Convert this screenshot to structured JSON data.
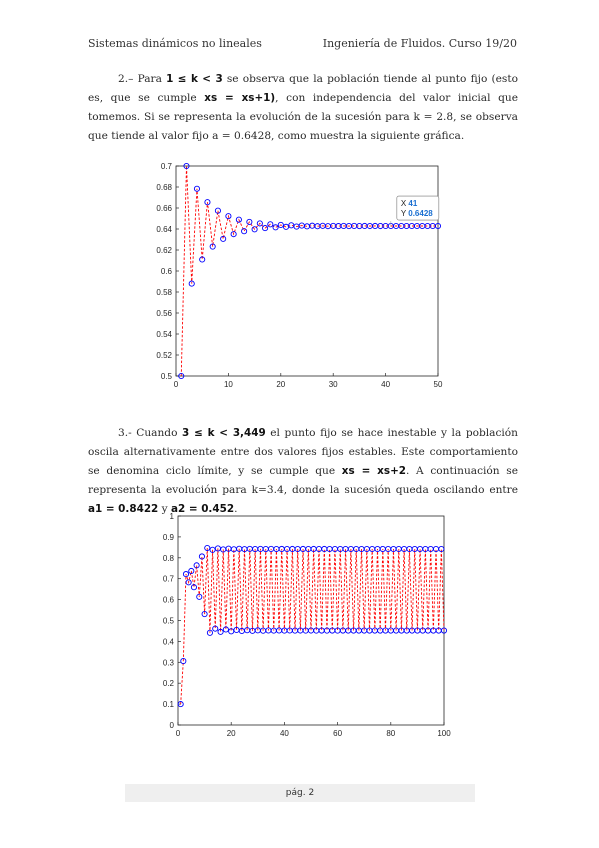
{
  "header": {
    "left": "Sistemas dinámicos no lineales",
    "right": "Ingeniería de Fluidos. Curso 19/20"
  },
  "section2": {
    "t1": "2.– Para ",
    "cond": "1 ≤ k < 3",
    "t2": " se observa que la población tiende al punto fijo (esto es, que se cumple ",
    "eq": "xs = xs+1)",
    "t3": ", con independencia del valor inicial que tomemos. Si se representa la evolución de la sucesión para k = 2.8, se observa que tiende al valor fijo a = 0.6428, como muestra la siguiente gráfica."
  },
  "section3": {
    "t1": "3.- Cuando ",
    "cond": "3 ≤ k < 3,449",
    "t2": " el punto fijo se hace inestable y la población oscila alternativamente entre dos valores fijos estables. Este comportamiento se denomina ciclo límite, y se cumple que ",
    "eq": "xs = xs+2",
    "t3": ". A continuación se representa la evolución para k=3.4, donde la sucesión queda oscilando entre ",
    "a1": "a1 = 0.8422",
    "t4": " y ",
    "a2": "a2 = 0.452",
    "t5": "."
  },
  "chart_data": [
    {
      "type": "scatter",
      "k": 2.8,
      "x0": 0.5,
      "n_points": 50,
      "xlim": [
        0,
        50
      ],
      "ylim": [
        0.5,
        0.7
      ],
      "xticks": [
        0,
        10,
        20,
        30,
        40,
        50
      ],
      "yticks": [
        0.5,
        0.52,
        0.54,
        0.56,
        0.58,
        0.6,
        0.62,
        0.64,
        0.66,
        0.68,
        0.7
      ],
      "marker_color": "#0000ff",
      "line_color": "#ff0000",
      "datatip": {
        "x_label": "X",
        "x_value": "41",
        "y_label": "Y",
        "y_value": "0.6428"
      }
    },
    {
      "type": "scatter",
      "k": 3.4,
      "x0": 0.1,
      "n_points": 100,
      "xlim": [
        0,
        100
      ],
      "ylim": [
        0,
        1
      ],
      "xticks": [
        0,
        20,
        40,
        60,
        80,
        100
      ],
      "yticks": [
        0,
        0.1,
        0.2,
        0.3,
        0.4,
        0.5,
        0.6,
        0.7,
        0.8,
        0.9,
        1
      ],
      "marker_color": "#0000ff",
      "line_color": "#ff0000"
    }
  ],
  "footer": {
    "page": "pág. 2"
  }
}
